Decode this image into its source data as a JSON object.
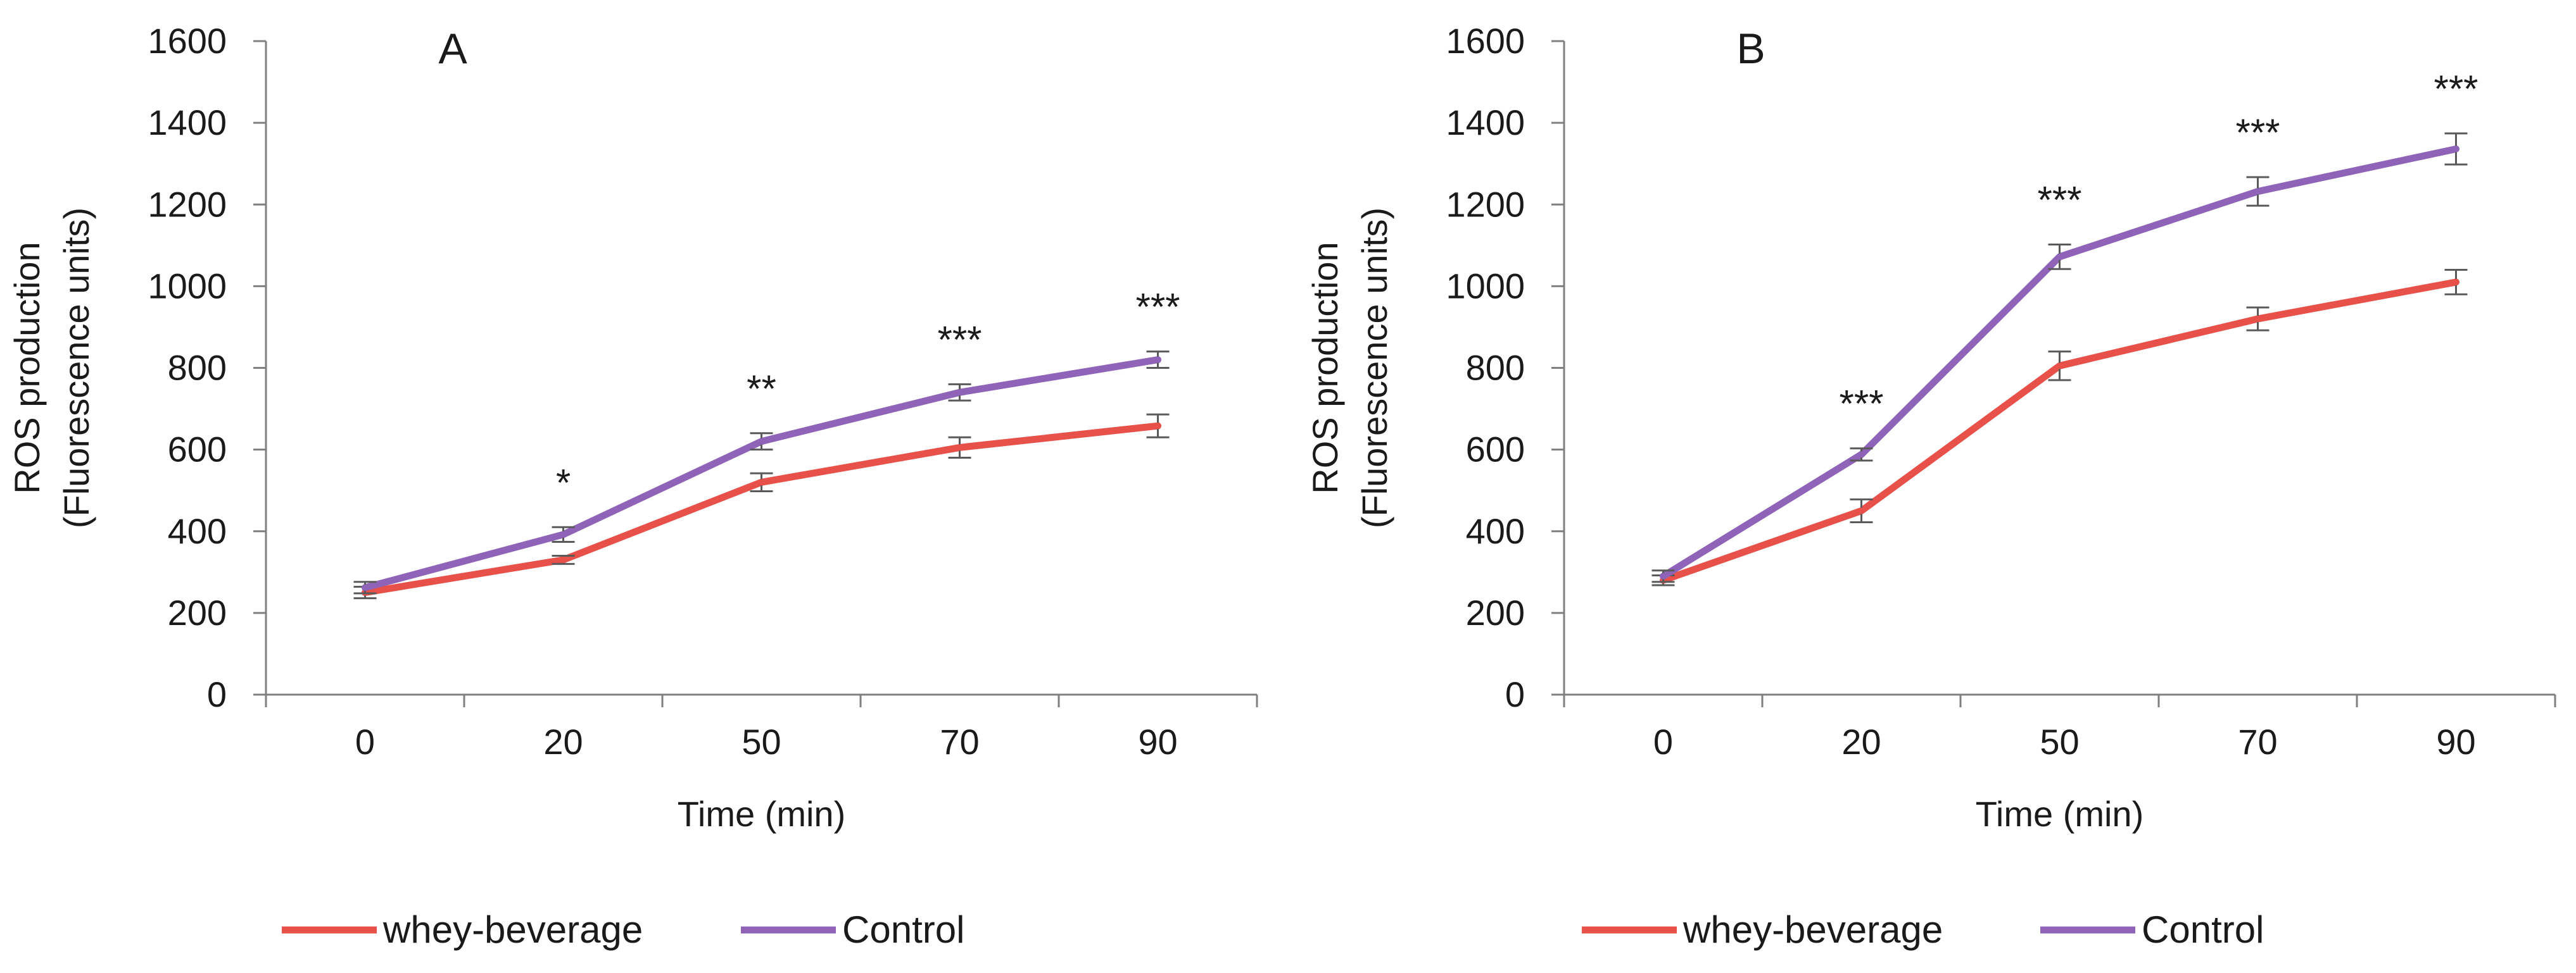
{
  "chart_data": [
    {
      "type": "line",
      "panel_label": "A",
      "ylabel_line1": "ROS production",
      "ylabel_line2": "(Fluorescence units)",
      "xlabel": "Time (min)",
      "categories": [
        "0",
        "20",
        "50",
        "70",
        "90"
      ],
      "yticks": [
        0,
        200,
        400,
        600,
        800,
        1000,
        1200,
        1400,
        1600
      ],
      "ylim": [
        0,
        1600
      ],
      "grid": false,
      "legend_position": "bottom",
      "series": [
        {
          "name": "whey-beverage",
          "color": "#e8504a",
          "values": [
            250,
            330,
            520,
            605,
            658
          ],
          "errors": [
            14,
            10,
            22,
            25,
            28
          ]
        },
        {
          "name": "Control",
          "color": "#8f63b8",
          "values": [
            262,
            392,
            620,
            740,
            820
          ],
          "errors": [
            14,
            18,
            20,
            20,
            20
          ]
        }
      ],
      "annotations": [
        "",
        "*",
        "**",
        "***",
        "***"
      ]
    },
    {
      "type": "line",
      "panel_label": "B",
      "ylabel_line1": "ROS production",
      "ylabel_line2": "(Fluorescence units)",
      "xlabel": "Time (min)",
      "categories": [
        "0",
        "20",
        "50",
        "70",
        "90"
      ],
      "yticks": [
        0,
        200,
        400,
        600,
        800,
        1000,
        1200,
        1400,
        1600
      ],
      "ylim": [
        0,
        1600
      ],
      "grid": false,
      "legend_position": "bottom",
      "series": [
        {
          "name": "whey-beverage",
          "color": "#e8504a",
          "values": [
            280,
            450,
            805,
            920,
            1010
          ],
          "errors": [
            12,
            28,
            35,
            28,
            30
          ]
        },
        {
          "name": "Control",
          "color": "#8f63b8",
          "values": [
            290,
            588,
            1072,
            1232,
            1336
          ],
          "errors": [
            14,
            15,
            30,
            35,
            38
          ]
        }
      ],
      "annotations": [
        "",
        "***",
        "***",
        "***",
        "***"
      ]
    }
  ]
}
